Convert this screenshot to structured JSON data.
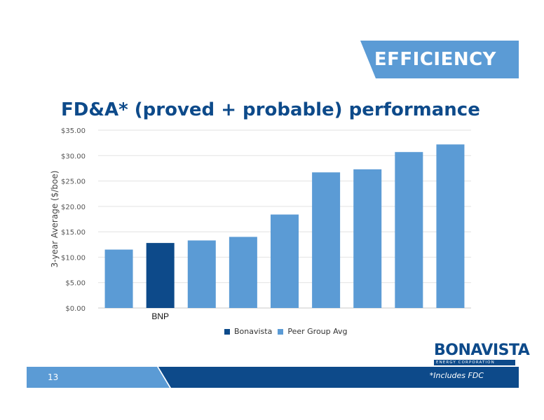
{
  "header": {
    "badge": "EFFICIENCY"
  },
  "slide": {
    "title": "FD&A* (proved + probable) performance"
  },
  "chart_data": {
    "type": "bar",
    "ylabel": "3-year Average ($/boe)",
    "ylim": [
      0,
      35
    ],
    "yticks": [
      "$0.00",
      "$5.00",
      "$10.00",
      "$15.00",
      "$20.00",
      "$25.00",
      "$30.00",
      "$35.00"
    ],
    "categories": [
      "",
      "BNP",
      "",
      "",
      "",
      "",
      "",
      "",
      ""
    ],
    "values": [
      11.5,
      12.8,
      13.3,
      14.0,
      18.4,
      26.7,
      27.3,
      30.7,
      32.2
    ],
    "series_of_bar": [
      "Peer Group Avg",
      "Bonavista",
      "Peer Group Avg",
      "Peer Group Avg",
      "Peer Group Avg",
      "Peer Group Avg",
      "Peer Group Avg",
      "Peer Group Avg",
      "Peer Group Avg"
    ],
    "legend": [
      {
        "name": "Bonavista",
        "color": "#0d4a8a"
      },
      {
        "name": "Peer Group Avg",
        "color": "#5b9bd5"
      }
    ],
    "legend_position": "bottom",
    "grid": true
  },
  "logo": {
    "name": "BONAVISTA",
    "tagline": "ENERGY CORPORATION"
  },
  "footer": {
    "page": "13",
    "note": "*Includes FDC"
  }
}
